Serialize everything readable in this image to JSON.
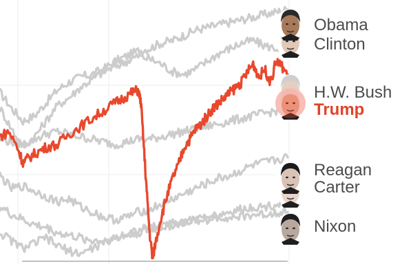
{
  "chart_data": {
    "type": "line",
    "title": "",
    "xlabel": "",
    "ylabel": "",
    "xlim": [
      0,
      100
    ],
    "ylim": [
      0,
      100
    ],
    "grid": true,
    "highlight_series": "Trump",
    "series": [
      {
        "name": "Obama",
        "color": "#cccccc",
        "x": [
          0,
          4,
          8,
          12,
          16,
          20,
          24,
          28,
          32,
          36,
          40,
          44,
          48,
          52,
          56,
          60,
          64,
          68,
          72,
          76,
          80,
          84,
          88,
          92,
          96,
          100
        ],
        "y": [
          66,
          60,
          55,
          57,
          62,
          67,
          70,
          72,
          73,
          75,
          78,
          80,
          82,
          83,
          85,
          86,
          88,
          90,
          91,
          92,
          93,
          94,
          95,
          96,
          97,
          98
        ]
      },
      {
        "name": "Clinton",
        "color": "#cccccc",
        "x": [
          0,
          4,
          8,
          12,
          16,
          20,
          24,
          28,
          32,
          36,
          40,
          44,
          48,
          52,
          56,
          60,
          64,
          68,
          72,
          76,
          80,
          84,
          88,
          92,
          96,
          100
        ],
        "y": [
          60,
          52,
          45,
          49,
          55,
          61,
          64,
          68,
          71,
          74,
          76,
          78,
          80,
          79,
          77,
          74,
          73,
          75,
          78,
          81,
          83,
          85,
          86,
          84,
          83,
          84
        ]
      },
      {
        "name": "H.W. Bush",
        "color": "#cccccc",
        "x": [
          0,
          4,
          8,
          12,
          16,
          20,
          24,
          28,
          32,
          36,
          40,
          44,
          48,
          52,
          56,
          60,
          64,
          68,
          72,
          76,
          80,
          84,
          88,
          92,
          96,
          100
        ],
        "y": [
          48,
          47,
          46,
          48,
          50,
          51,
          50,
          49,
          48,
          47,
          46,
          47,
          48,
          48,
          49,
          50,
          51,
          52,
          53,
          54,
          55,
          56,
          57,
          58,
          59,
          59
        ]
      },
      {
        "name": "Trump",
        "color": "#e8482d",
        "x": [
          0,
          3,
          6,
          8,
          10,
          13,
          16,
          20,
          24,
          28,
          32,
          36,
          40,
          43,
          46,
          48,
          49,
          50,
          51,
          52,
          53,
          54,
          56,
          58,
          60,
          62,
          64,
          66,
          68,
          70,
          72,
          74,
          76,
          78,
          80,
          82,
          84,
          86,
          88,
          90,
          92,
          94,
          96,
          98,
          100
        ],
        "y": [
          49,
          51,
          45,
          39,
          41,
          43,
          45,
          46,
          50,
          53,
          56,
          59,
          62,
          64,
          66,
          67,
          62,
          45,
          28,
          12,
          2,
          8,
          18,
          26,
          33,
          38,
          45,
          48,
          52,
          54,
          57,
          60,
          62,
          64,
          66,
          68,
          70,
          74,
          77,
          72,
          75,
          70,
          78,
          76,
          73
        ]
      },
      {
        "name": "Reagan",
        "color": "#cccccc",
        "x": [
          0,
          4,
          8,
          12,
          16,
          20,
          24,
          28,
          32,
          36,
          40,
          44,
          48,
          52,
          56,
          60,
          64,
          68,
          72,
          76,
          80,
          84,
          88,
          92,
          96,
          100
        ],
        "y": [
          34,
          29,
          30,
          28,
          26,
          24,
          25,
          22,
          20,
          18,
          17,
          18,
          20,
          21,
          23,
          25,
          27,
          29,
          31,
          33,
          34,
          36,
          38,
          39,
          40,
          41
        ]
      },
      {
        "name": "Carter",
        "color": "#cccccc",
        "x": [
          0,
          4,
          8,
          12,
          16,
          20,
          24,
          28,
          32,
          36,
          40,
          44,
          48,
          52,
          56,
          60,
          64,
          68,
          72,
          76,
          80,
          84,
          88,
          92,
          96,
          100
        ],
        "y": [
          22,
          19,
          17,
          15,
          14,
          12,
          11,
          10,
          9,
          9,
          10,
          11,
          12,
          13,
          14,
          15,
          16,
          17,
          18,
          19,
          20,
          21,
          22,
          22,
          23,
          24
        ]
      },
      {
        "name": "Nixon",
        "color": "#cccccc",
        "x": [
          0,
          4,
          8,
          12,
          16,
          20,
          24,
          28,
          32,
          36,
          40,
          44,
          48,
          52,
          56,
          60,
          64,
          68,
          72,
          76,
          80,
          84,
          88,
          92,
          96,
          100
        ],
        "y": [
          12,
          9,
          6,
          8,
          10,
          7,
          5,
          4,
          6,
          8,
          10,
          12,
          13,
          14,
          15,
          16,
          16,
          17,
          17,
          18,
          18,
          18,
          19,
          19,
          20,
          20
        ]
      }
    ],
    "label_rows": [
      [
        "Obama",
        "Clinton"
      ],
      [
        "H.W. Bush",
        "Trump"
      ],
      [
        "Reagan",
        "Carter"
      ],
      [
        "Nixon"
      ]
    ],
    "portraits": [
      {
        "name": "Obama",
        "icon": "obama-portrait-icon",
        "skin": "#a67a5a",
        "hair": "#2a2a2a"
      },
      {
        "name": "Clinton",
        "icon": "clinton-portrait-icon",
        "skin": "#e0c9b8",
        "hair": "#dcdcdc"
      },
      {
        "name": "H.W. Bush",
        "icon": "hw-bush-portrait-icon",
        "skin": "#e4cfc2",
        "hair": "#cfcfcf"
      },
      {
        "name": "Trump",
        "icon": "trump-portrait-icon",
        "skin": "#f2b8a2",
        "hair": "#f6f6f6",
        "tint": "#e8482d"
      },
      {
        "name": "Reagan",
        "icon": "reagan-portrait-icon",
        "skin": "#d9c3b6",
        "hair": "#1a1a1a"
      },
      {
        "name": "Carter",
        "icon": "carter-portrait-icon",
        "skin": "#e6d6cc",
        "hair": "#d4d4d4"
      },
      {
        "name": "Nixon",
        "icon": "nixon-portrait-icon",
        "skin": "#b9a89e",
        "hair": "#1e1e1e"
      }
    ]
  }
}
